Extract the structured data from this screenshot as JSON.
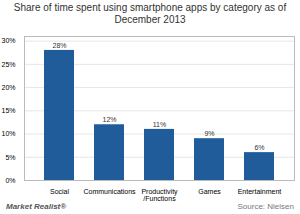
{
  "chart_data": {
    "type": "bar",
    "title": "Share of time spent using smartphone apps by category as of December 2013",
    "categories": [
      "Social",
      "Communications",
      "Productivity\n/Functions",
      "Games",
      "Entertainment"
    ],
    "values": [
      28,
      12,
      11,
      9,
      6
    ],
    "value_labels": [
      "28%",
      "12%",
      "11%",
      "9%",
      "6%"
    ],
    "data_labels": true,
    "color": "#1F5C99",
    "ylim": [
      0,
      31
    ],
    "yticks": [
      {
        "value": 0,
        "label": "0%"
      },
      {
        "value": 5,
        "label": "5%"
      },
      {
        "value": 10,
        "label": "10%"
      },
      {
        "value": 15,
        "label": "15%"
      },
      {
        "value": 20,
        "label": "20%"
      },
      {
        "value": 25,
        "label": "25%"
      },
      {
        "value": 30,
        "label": "30%"
      }
    ],
    "grid": true,
    "annotations": [
      "Market Realist®",
      "Source: Nielsen"
    ]
  }
}
